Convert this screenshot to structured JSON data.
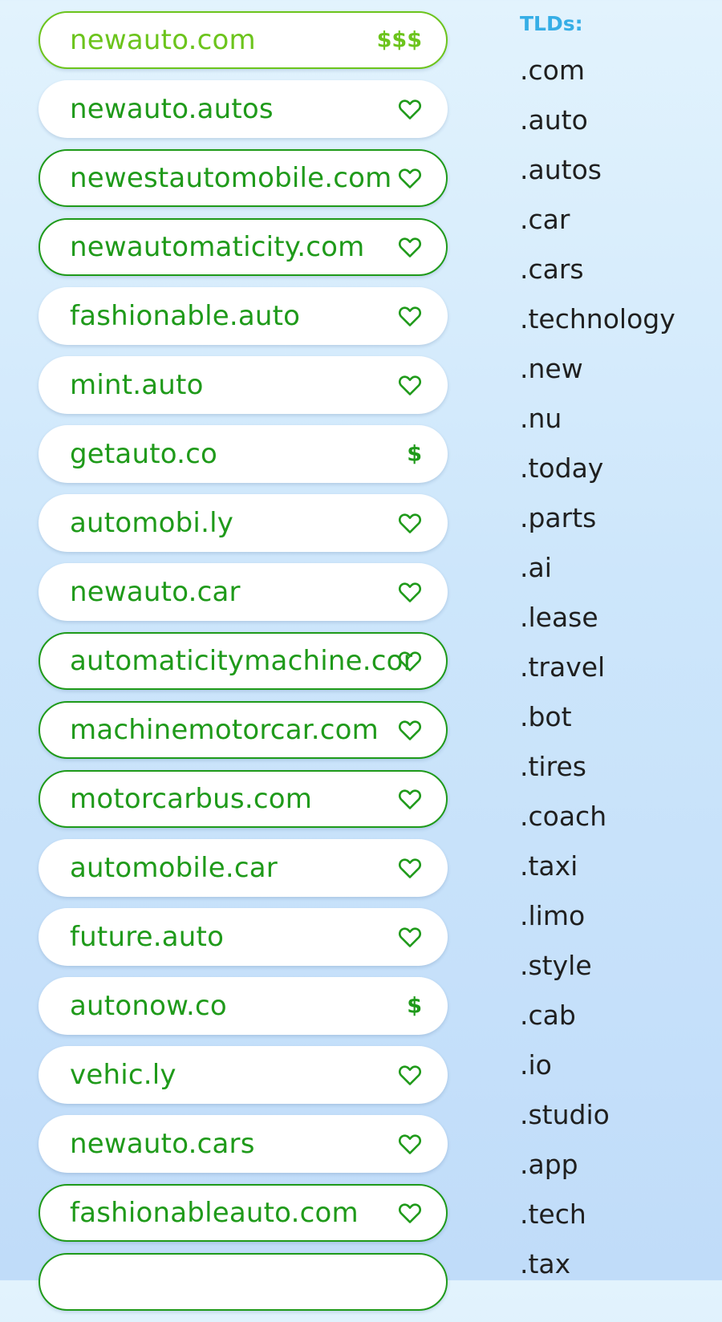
{
  "colors": {
    "registered_border": "#1f9a1a",
    "domain_text": "#1f9a1a",
    "highlight": "#6cc41c",
    "tld_heading": "#36aee6",
    "tld_text": "#1f1f1f",
    "pill_background": "#ffffff"
  },
  "domains": [
    {
      "name": "newauto.com",
      "badge": "$$$",
      "icon": "",
      "state": "highlighted"
    },
    {
      "name": "newauto.autos",
      "badge": "",
      "icon": "heart-icon",
      "state": "available"
    },
    {
      "name": "newestautomobile.com",
      "badge": "",
      "icon": "heart-icon",
      "state": "registered"
    },
    {
      "name": "newautomaticity.com",
      "badge": "",
      "icon": "heart-icon",
      "state": "registered"
    },
    {
      "name": "fashionable.auto",
      "badge": "",
      "icon": "heart-icon",
      "state": "available"
    },
    {
      "name": "mint.auto",
      "badge": "",
      "icon": "heart-icon",
      "state": "available"
    },
    {
      "name": "getauto.co",
      "badge": "$",
      "icon": "",
      "state": "available"
    },
    {
      "name": "automobi.ly",
      "badge": "",
      "icon": "heart-icon",
      "state": "available"
    },
    {
      "name": "newauto.car",
      "badge": "",
      "icon": "heart-icon",
      "state": "available"
    },
    {
      "name": "automaticitymachine.com",
      "badge": "",
      "icon": "heart-icon",
      "state": "registered"
    },
    {
      "name": "machinemotorcar.com",
      "badge": "",
      "icon": "heart-icon",
      "state": "registered"
    },
    {
      "name": "motorcarbus.com",
      "badge": "",
      "icon": "heart-icon",
      "state": "registered"
    },
    {
      "name": "automobile.car",
      "badge": "",
      "icon": "heart-icon",
      "state": "available"
    },
    {
      "name": "future.auto",
      "badge": "",
      "icon": "heart-icon",
      "state": "available"
    },
    {
      "name": "autonow.co",
      "badge": "$",
      "icon": "",
      "state": "available"
    },
    {
      "name": "vehic.ly",
      "badge": "",
      "icon": "heart-icon",
      "state": "available"
    },
    {
      "name": "newauto.cars",
      "badge": "",
      "icon": "heart-icon",
      "state": "available"
    },
    {
      "name": "fashionableauto.com",
      "badge": "",
      "icon": "heart-icon",
      "state": "registered"
    },
    {
      "name": "",
      "badge": "",
      "icon": "",
      "state": "registered"
    }
  ],
  "tld_panel": {
    "heading": "TLDs:",
    "items": [
      ".com",
      ".auto",
      ".autos",
      ".car",
      ".cars",
      ".technology",
      ".new",
      ".nu",
      ".today",
      ".parts",
      ".ai",
      ".lease",
      ".travel",
      ".bot",
      ".tires",
      ".coach",
      ".taxi",
      ".limo",
      ".style",
      ".cab",
      ".io",
      ".studio",
      ".app",
      ".tech",
      ".tax"
    ]
  }
}
